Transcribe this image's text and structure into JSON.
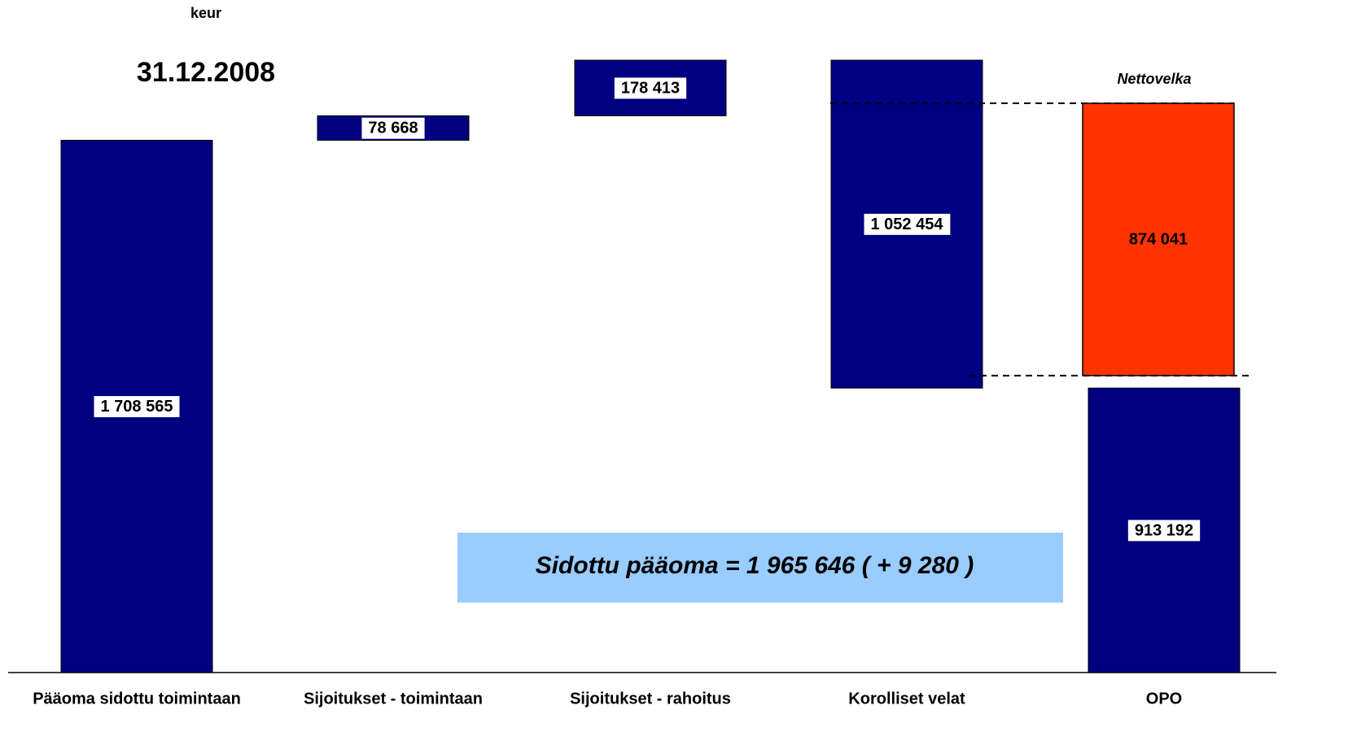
{
  "chart_data": {
    "type": "waterfall",
    "unit": "keur",
    "title": "31.12.2008",
    "categories": [
      "Pääoma sidottu toimintaan",
      "Sijoitukset - toimintaan",
      "Sijoitukset - rahoitus",
      "Korolliset velat",
      "OPO"
    ],
    "values": [
      1708565,
      78668,
      178413,
      1052454,
      913192
    ],
    "value_labels": [
      "1 708 565",
      "78 668",
      "178 413",
      "1 052 454",
      "913 192"
    ],
    "measure": [
      "increase",
      "increase",
      "increase",
      "decrease",
      "total"
    ],
    "color": "#000080",
    "net_debt": {
      "label": "Nettovelka",
      "value": 874041,
      "value_label": "874 041",
      "color": "#ff3300"
    },
    "annotation": "Sidottu pääoma  = 1 965 646 ( + 9 280 )"
  }
}
